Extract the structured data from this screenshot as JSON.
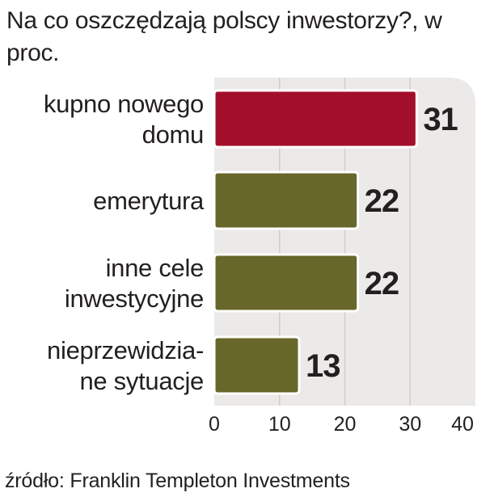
{
  "chart_data": {
    "type": "bar",
    "orientation": "horizontal",
    "title": "Na co oszczędzają polscy inwestorzy?, w proc.",
    "categories": [
      [
        "kupno nowego",
        "domu"
      ],
      [
        "emerytura"
      ],
      [
        "inne cele",
        "inwestycyjne"
      ],
      [
        "nieprzewidzia-",
        "ne sytuacje"
      ]
    ],
    "values": [
      31,
      22,
      22,
      13
    ],
    "value_labels": [
      "31",
      "22",
      "22",
      "13"
    ],
    "xlim": [
      0,
      40
    ],
    "xticks": [
      0,
      10,
      20,
      30,
      40
    ],
    "tick_labels": [
      "0",
      "10",
      "20",
      "30",
      "40"
    ],
    "grid": true,
    "colors": {
      "highlight": "#a30f2b",
      "default": "#68672a",
      "plot_background": "#eceae8",
      "bar_outline": "#ffffff",
      "gridline": "#d0cdc9"
    },
    "highlight_index": 0
  },
  "source": "źródło: Franklin Templeton Investments"
}
